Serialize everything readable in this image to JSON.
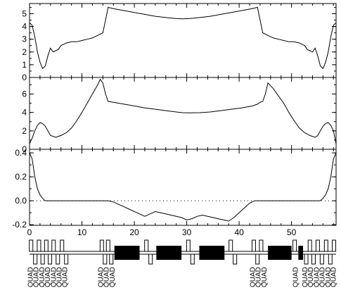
{
  "chart_data": [
    {
      "type": "line",
      "title": "",
      "xlabel": "",
      "ylabel": "",
      "xlim": [
        0,
        58.5
      ],
      "ylim": [
        0,
        5.8
      ],
      "yticks": [
        "0",
        "1",
        "2",
        "3",
        "4",
        "5"
      ],
      "grid": false,
      "series": [
        {
          "x": [
            0,
            0.5,
            1,
            1.5,
            2,
            2.5,
            3,
            3.5,
            4,
            4.5,
            5,
            5.5,
            6,
            7,
            8,
            9,
            10,
            11,
            12,
            13,
            14,
            14.5,
            15,
            16,
            18,
            20,
            22,
            24,
            26,
            28,
            29.25,
            30.5,
            32.5,
            34.5,
            36.5,
            38.5,
            40.5,
            42.5,
            43.5,
            44,
            44.5,
            45.5,
            46.5,
            47.5,
            48.5,
            49.5,
            50.5,
            51.5,
            52.5,
            53,
            53.5,
            54,
            54.5,
            55,
            55.5,
            56,
            56.5,
            57,
            57.5,
            58,
            58.5
          ],
          "y": [
            4.3,
            4.1,
            3.2,
            2.0,
            1.2,
            0.7,
            0.9,
            1.7,
            2.3,
            2.0,
            2.1,
            2.2,
            2.5,
            2.7,
            2.8,
            2.8,
            2.9,
            3.0,
            3.1,
            3.3,
            3.5,
            4.5,
            5.5,
            5.4,
            5.25,
            5.1,
            4.95,
            4.8,
            4.7,
            4.62,
            4.6,
            4.62,
            4.7,
            4.8,
            4.95,
            5.1,
            5.25,
            5.4,
            5.5,
            4.5,
            3.5,
            3.3,
            3.1,
            3.0,
            2.9,
            2.8,
            2.8,
            2.7,
            2.5,
            2.2,
            2.1,
            2.0,
            2.3,
            1.7,
            0.9,
            0.7,
            1.2,
            2.0,
            3.2,
            4.1,
            4.3
          ]
        }
      ]
    },
    {
      "type": "line",
      "title": "",
      "xlabel": "",
      "ylabel": "",
      "xlim": [
        0,
        58.5
      ],
      "ylim": [
        0,
        7.8
      ],
      "yticks": [
        "0",
        "2",
        "4",
        "6"
      ],
      "grid": false,
      "series": [
        {
          "x": [
            0,
            0.5,
            1,
            1.5,
            2,
            2.5,
            3,
            3.5,
            4,
            5,
            6,
            7,
            8,
            9,
            10,
            11,
            12,
            13,
            13.5,
            14,
            14.5,
            15,
            16,
            18,
            20,
            22,
            24,
            26,
            28,
            29.25,
            30.5,
            32.5,
            34.5,
            36.5,
            38.5,
            40.5,
            42.5,
            43.5,
            44,
            44.5,
            45,
            45.5,
            46.5,
            47.5,
            48.5,
            49.5,
            50.5,
            51.5,
            52.5,
            53.5,
            54.5,
            55,
            55.5,
            56,
            56.5,
            57,
            57.5,
            58,
            58.5
          ],
          "y": [
            0.6,
            1.2,
            2.0,
            2.6,
            2.9,
            2.8,
            2.5,
            2.0,
            1.5,
            1.3,
            1.5,
            1.8,
            2.3,
            3.1,
            4.0,
            5.0,
            6.0,
            7.0,
            7.6,
            7.2,
            6.0,
            5.2,
            5.1,
            4.9,
            4.7,
            4.5,
            4.35,
            4.2,
            4.05,
            3.98,
            3.95,
            3.98,
            4.05,
            4.2,
            4.35,
            4.5,
            4.7,
            4.9,
            5.1,
            5.2,
            6.0,
            7.2,
            6.6,
            5.8,
            5.0,
            4.0,
            3.1,
            2.3,
            1.8,
            1.5,
            1.3,
            1.5,
            2.0,
            2.5,
            2.8,
            2.9,
            2.6,
            2.0,
            0.6
          ]
        }
      ]
    },
    {
      "type": "line",
      "title": "",
      "xlabel": "",
      "ylabel": "",
      "xlim": [
        0,
        58.5
      ],
      "ylim": [
        -0.205,
        0.43
      ],
      "yticks": [
        "-0.2",
        "0.0",
        "0.2",
        "0.4"
      ],
      "xticks": [
        "0",
        "10",
        "20",
        "30",
        "40",
        "50"
      ],
      "zero_line": "dotted",
      "grid": false,
      "series": [
        {
          "x": [
            0,
            0.5,
            1,
            1.5,
            2,
            2.5,
            3,
            15,
            16,
            17,
            18,
            19,
            20,
            21,
            22,
            23,
            24,
            25,
            26,
            27,
            28,
            29,
            30,
            31,
            32,
            33,
            34,
            35,
            36,
            37,
            38,
            39,
            40,
            41,
            42,
            43,
            55.5,
            56,
            56.5,
            57,
            57.5,
            58,
            58.5
          ],
          "y": [
            0.4,
            0.35,
            0.2,
            0.1,
            0.05,
            0.02,
            0.0,
            0.0,
            -0.01,
            -0.03,
            -0.05,
            -0.07,
            -0.09,
            -0.11,
            -0.13,
            -0.11,
            -0.09,
            -0.1,
            -0.11,
            -0.12,
            -0.13,
            -0.14,
            -0.16,
            -0.15,
            -0.13,
            -0.12,
            -0.13,
            -0.14,
            -0.15,
            -0.16,
            -0.17,
            -0.14,
            -0.1,
            -0.06,
            -0.02,
            0.0,
            0.0,
            0.02,
            0.05,
            0.1,
            0.2,
            0.35,
            0.4
          ]
        }
      ]
    }
  ],
  "lattice": {
    "xlim": [
      0,
      58.5
    ],
    "dipoles": [
      {
        "start": 16.2,
        "end": 21.0
      },
      {
        "start": 24.2,
        "end": 29.0
      },
      {
        "start": 32.4,
        "end": 37.2
      },
      {
        "start": 45.5,
        "end": 50.0
      },
      {
        "start": 51.3,
        "end": 52.2
      }
    ],
    "small_elements": [
      {
        "x": 0.3,
        "kind": "up"
      },
      {
        "x": 1.1,
        "kind": "down"
      },
      {
        "x": 1.8,
        "kind": "up"
      },
      {
        "x": 2.5,
        "kind": "down"
      },
      {
        "x": 3.2,
        "kind": "up"
      },
      {
        "x": 3.9,
        "kind": "down"
      },
      {
        "x": 4.6,
        "kind": "up"
      },
      {
        "x": 5.4,
        "kind": "down"
      },
      {
        "x": 6.2,
        "kind": "up"
      },
      {
        "x": 7.0,
        "kind": "down"
      },
      {
        "x": 13.8,
        "kind": "up"
      },
      {
        "x": 14.4,
        "kind": "down"
      },
      {
        "x": 15.0,
        "kind": "up"
      },
      {
        "x": 15.6,
        "kind": "down"
      },
      {
        "x": 22.3,
        "kind": "up"
      },
      {
        "x": 23.1,
        "kind": "down"
      },
      {
        "x": 30.3,
        "kind": "up"
      },
      {
        "x": 31.1,
        "kind": "down"
      },
      {
        "x": 38.4,
        "kind": "up"
      },
      {
        "x": 39.2,
        "kind": "down"
      },
      {
        "x": 42.8,
        "kind": "up"
      },
      {
        "x": 43.5,
        "kind": "down"
      },
      {
        "x": 44.2,
        "kind": "up"
      },
      {
        "x": 50.6,
        "kind": "up"
      },
      {
        "x": 52.8,
        "kind": "down"
      },
      {
        "x": 53.5,
        "kind": "up"
      },
      {
        "x": 54.2,
        "kind": "down"
      },
      {
        "x": 55.0,
        "kind": "up"
      },
      {
        "x": 55.8,
        "kind": "down"
      },
      {
        "x": 56.6,
        "kind": "up"
      },
      {
        "x": 57.4,
        "kind": "down"
      },
      {
        "x": 58.1,
        "kind": "up"
      }
    ],
    "labels": [
      {
        "x": 0.2,
        "text": "QUAD"
      },
      {
        "x": 1.3,
        "text": "QUAD"
      },
      {
        "x": 2.4,
        "text": "QUAD"
      },
      {
        "x": 3.5,
        "text": "QUAD"
      },
      {
        "x": 4.6,
        "text": "QUAD"
      },
      {
        "x": 5.7,
        "text": "QUAD"
      },
      {
        "x": 6.8,
        "text": "QUAD"
      },
      {
        "x": 13.6,
        "text": "QUAD"
      },
      {
        "x": 14.7,
        "text": "QUAD"
      },
      {
        "x": 15.8,
        "text": "QUAD"
      },
      {
        "x": 42.6,
        "text": "QUAD"
      },
      {
        "x": 43.7,
        "text": "QUAD"
      },
      {
        "x": 44.8,
        "text": "QUAD"
      },
      {
        "x": 50.8,
        "text": "QUAD"
      },
      {
        "x": 52.6,
        "text": "QUAD"
      },
      {
        "x": 53.7,
        "text": "QUAD"
      },
      {
        "x": 54.8,
        "text": "QUAD"
      },
      {
        "x": 55.9,
        "text": "QUAD"
      },
      {
        "x": 57.0,
        "text": "QUAD"
      },
      {
        "x": 58.0,
        "text": "QUAD"
      }
    ]
  }
}
